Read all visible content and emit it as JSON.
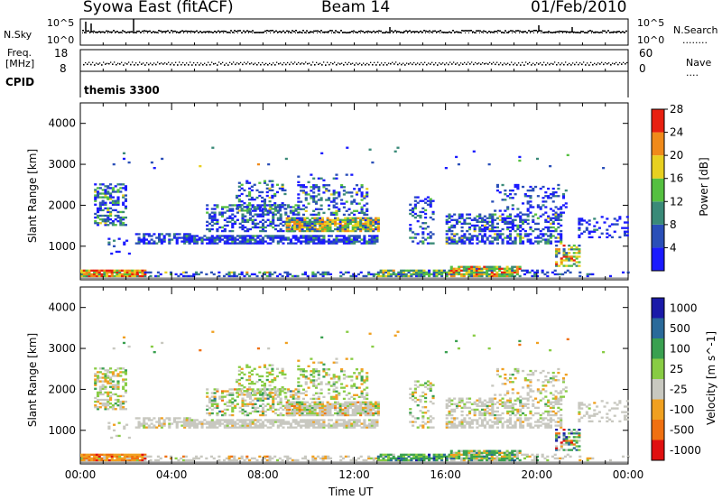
{
  "header": {
    "station": "Syowa East (fitACF)",
    "beam": "Beam 14",
    "date": "01/Feb/2010"
  },
  "nsky_panel": {
    "left_label": "N.Sky",
    "right_label": "N.Search",
    "right_dots": "........",
    "ytick_top": "10^5",
    "ytick_bottom": "10^0"
  },
  "freq_panel": {
    "left_label_line1": "Freq.",
    "left_label_line2": "[MHz]",
    "left_ticks": [
      "18",
      "8"
    ],
    "right_ticks": [
      "60",
      "0"
    ],
    "right_label": "Nave",
    "right_dots": "....",
    "series": {
      "freq_level": 11.5,
      "nave_level": 25
    }
  },
  "cpid_panel": {
    "label": "CPID",
    "mode": "themis 3300"
  },
  "chart_data": [
    {
      "type": "heatmap",
      "name": "power",
      "ylabel": "Slant Range [km]",
      "colorbar_label": "Power [dB]",
      "y_ticks": [
        "1000",
        "2000",
        "3000",
        "4000"
      ],
      "ylim": [
        180,
        4500
      ],
      "colorbar_ticks": [
        "4",
        "8",
        "12",
        "16",
        "20",
        "24",
        "28"
      ],
      "colors": [
        "#1a1aff",
        "#2a4fb8",
        "#3a8a78",
        "#55c040",
        "#e8d020",
        "#f08a1a",
        "#e82010"
      ]
    },
    {
      "type": "heatmap",
      "name": "velocity",
      "ylabel": "Slant Range [km]",
      "colorbar_label": "Velocity [m s^-1]",
      "y_ticks": [
        "1000",
        "2000",
        "3000",
        "4000"
      ],
      "ylim": [
        180,
        4500
      ],
      "colorbar_ticks": [
        "1000",
        "500",
        "100",
        "25",
        "-25",
        "-100",
        "-500",
        "-1000"
      ],
      "colors": [
        "#1a1aa8",
        "#2a6a9a",
        "#3aa050",
        "#88cc44",
        "#c8c8c0",
        "#f0a020",
        "#f07010",
        "#e01010"
      ],
      "xlabel": "Time UT",
      "x_ticks": [
        "00:00",
        "04:00",
        "08:00",
        "12:00",
        "16:00",
        "20:00",
        "00:00"
      ]
    }
  ]
}
